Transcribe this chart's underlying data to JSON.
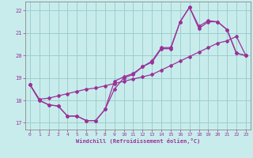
{
  "xlabel": "Windchill (Refroidissement éolien,°C)",
  "xlim": [
    -0.5,
    23.5
  ],
  "ylim": [
    16.7,
    22.4
  ],
  "yticks": [
    17,
    18,
    19,
    20,
    21,
    22
  ],
  "xticks": [
    0,
    1,
    2,
    3,
    4,
    5,
    6,
    7,
    8,
    9,
    10,
    11,
    12,
    13,
    14,
    15,
    16,
    17,
    18,
    19,
    20,
    21,
    22,
    23
  ],
  "background_color": "#c8ecec",
  "grid_color": "#9ecece",
  "line_color": "#993399",
  "line1_y": [
    18.7,
    18.0,
    17.8,
    17.75,
    17.3,
    17.3,
    17.1,
    17.1,
    17.6,
    18.85,
    19.05,
    19.2,
    19.5,
    19.75,
    20.35,
    20.35,
    21.5,
    22.15,
    21.3,
    21.55,
    21.5,
    21.15,
    20.1,
    20.0
  ],
  "line2_y": [
    18.7,
    18.0,
    17.8,
    17.75,
    17.3,
    17.3,
    17.1,
    17.1,
    17.6,
    18.5,
    19.0,
    19.15,
    19.5,
    19.7,
    20.3,
    20.3,
    21.5,
    22.15,
    21.2,
    21.5,
    21.5,
    21.15,
    20.1,
    20.0
  ],
  "line3_y": [
    18.7,
    18.05,
    18.1,
    18.2,
    18.3,
    18.4,
    18.5,
    18.55,
    18.65,
    18.75,
    18.85,
    18.95,
    19.05,
    19.15,
    19.35,
    19.55,
    19.75,
    19.95,
    20.15,
    20.35,
    20.55,
    20.65,
    20.85,
    20.0
  ]
}
